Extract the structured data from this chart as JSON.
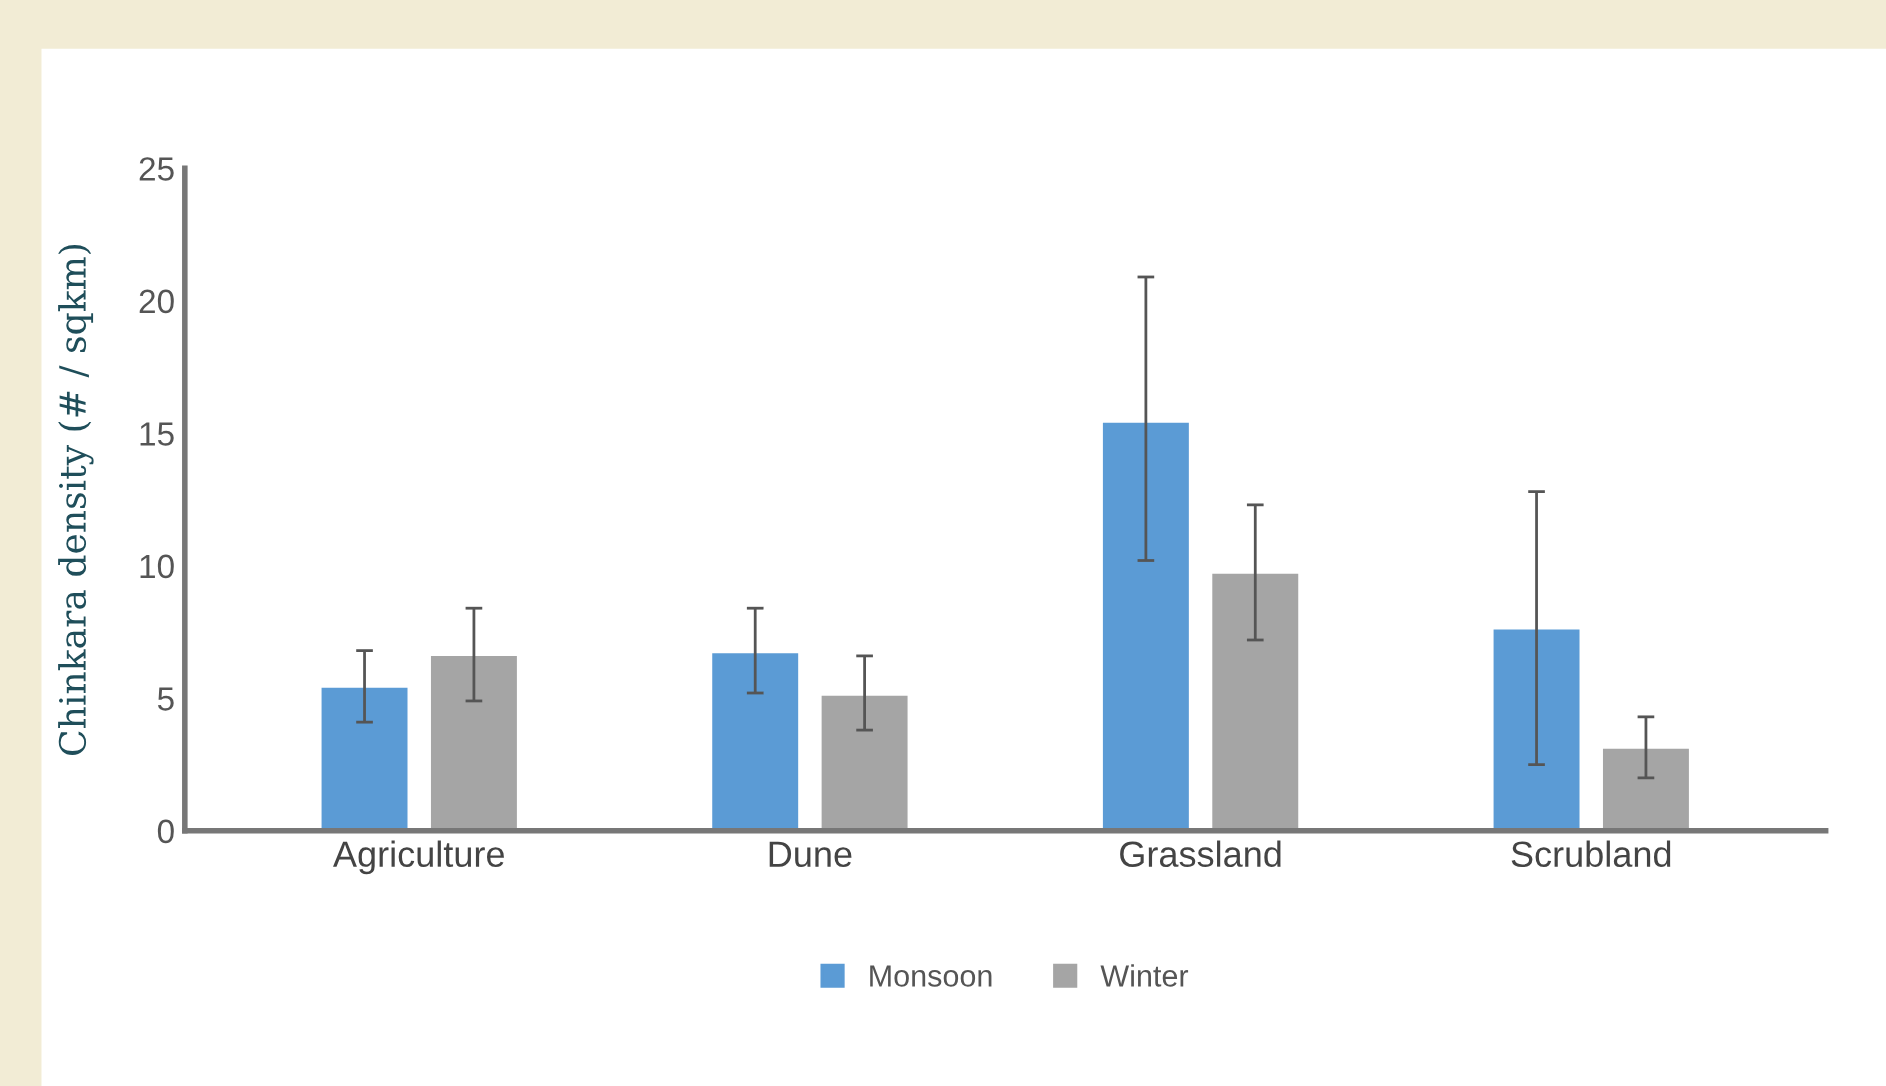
{
  "chart_data": {
    "type": "bar",
    "ylabel": "Chinkara density (# / sqkm)",
    "categories": [
      "Agriculture",
      "Dune",
      "Grassland",
      "Scrubland"
    ],
    "series": [
      {
        "name": "Monsoon",
        "color": "#5b9bd5",
        "values": [
          5.4,
          6.7,
          15.4,
          7.6
        ],
        "errors": [
          [
            4.1,
            6.8
          ],
          [
            5.2,
            8.4
          ],
          [
            10.2,
            20.9
          ],
          [
            2.5,
            12.8
          ]
        ]
      },
      {
        "name": "Winter",
        "color": "#a5a5a5",
        "values": [
          6.6,
          5.1,
          9.7,
          3.1
        ],
        "errors": [
          [
            4.9,
            8.4
          ],
          [
            3.8,
            6.6
          ],
          [
            7.2,
            12.3
          ],
          [
            2.0,
            4.3
          ]
        ]
      }
    ],
    "ylim": [
      0,
      25
    ],
    "yticks": [
      0,
      5,
      10,
      15,
      20,
      25
    ],
    "grid": false,
    "legend": "bottom"
  }
}
